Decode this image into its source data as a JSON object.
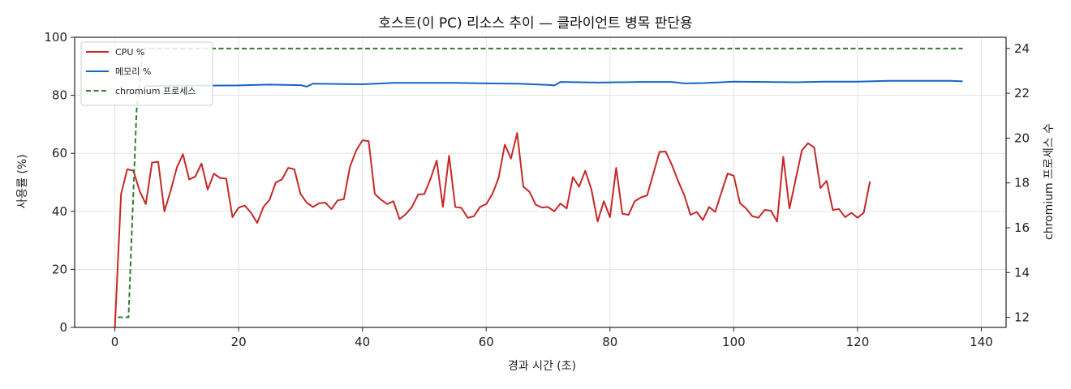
{
  "chart_data": {
    "type": "line",
    "title": "호스트(이 PC) 리소스 추이 — 클라이언트 병목 판단용",
    "xlabel": "경과 시간 (초)",
    "ylabel": "사용률 (%)",
    "y2label": "chromium 프로세스 수",
    "xlim": [
      -6.5,
      144
    ],
    "ylim": [
      0,
      100
    ],
    "y2lim": [
      11.55,
      24.5
    ],
    "xticks": [
      0,
      20,
      40,
      60,
      80,
      100,
      120,
      140
    ],
    "yticks": [
      0,
      20,
      40,
      60,
      80,
      100
    ],
    "y2ticks": [
      12,
      14,
      16,
      18,
      20,
      22,
      24
    ],
    "grid": true,
    "legend_position": "upper-left",
    "series": [
      {
        "name": "CPU %",
        "axis": "left",
        "color": "#c62828",
        "style": "solid",
        "points": [
          [
            0,
            0
          ],
          [
            1,
            46
          ],
          [
            2,
            54.5
          ],
          [
            3,
            54
          ],
          [
            4,
            47
          ],
          [
            5,
            42.5
          ],
          [
            6,
            56.8
          ],
          [
            7,
            57.1
          ],
          [
            8,
            40
          ],
          [
            9,
            47
          ],
          [
            10,
            55
          ],
          [
            11,
            59.7
          ],
          [
            12,
            51
          ],
          [
            13,
            52
          ],
          [
            14,
            56.5
          ],
          [
            15,
            47.5
          ],
          [
            16,
            53
          ],
          [
            17,
            51.5
          ],
          [
            18,
            51.3
          ],
          [
            19,
            38
          ],
          [
            20,
            41.3
          ],
          [
            21,
            42
          ],
          [
            22,
            39.5
          ],
          [
            23,
            36
          ],
          [
            24,
            41.5
          ],
          [
            25,
            44
          ],
          [
            26,
            50
          ],
          [
            27,
            51
          ],
          [
            28,
            55
          ],
          [
            29,
            54.5
          ],
          [
            30,
            46
          ],
          [
            31,
            43
          ],
          [
            32,
            41.5
          ],
          [
            33,
            42.8
          ],
          [
            34,
            43
          ],
          [
            35,
            40.8
          ],
          [
            36,
            43.8
          ],
          [
            37,
            44.2
          ],
          [
            38,
            55.5
          ],
          [
            39,
            61
          ],
          [
            40,
            64.5
          ],
          [
            41,
            64.2
          ],
          [
            42,
            46
          ],
          [
            43,
            44
          ],
          [
            44,
            42.5
          ],
          [
            45,
            43.5
          ],
          [
            46,
            37.3
          ],
          [
            47,
            39
          ],
          [
            48,
            41.5
          ],
          [
            49,
            45.8
          ],
          [
            50,
            46
          ],
          [
            51,
            51.2
          ],
          [
            52,
            57.5
          ],
          [
            53,
            41.5
          ],
          [
            54,
            59.2
          ],
          [
            55,
            41.5
          ],
          [
            56,
            41.2
          ],
          [
            57,
            37.8
          ],
          [
            58,
            38.3
          ],
          [
            59,
            41.5
          ],
          [
            60,
            42.5
          ],
          [
            61,
            46
          ],
          [
            62,
            51.5
          ],
          [
            63,
            63
          ],
          [
            64,
            58.2
          ],
          [
            65,
            67
          ],
          [
            66,
            48.5
          ],
          [
            67,
            46.7
          ],
          [
            68,
            42.3
          ],
          [
            69,
            41.3
          ],
          [
            70,
            41.5
          ],
          [
            71,
            40
          ],
          [
            72,
            42.7
          ],
          [
            73,
            41
          ],
          [
            74,
            51.8
          ],
          [
            75,
            48.5
          ],
          [
            76,
            54
          ],
          [
            77,
            47.5
          ],
          [
            78,
            36.5
          ],
          [
            79,
            43.5
          ],
          [
            80,
            38
          ],
          [
            81,
            55
          ],
          [
            82,
            39.2
          ],
          [
            83,
            38.8
          ],
          [
            84,
            43.5
          ],
          [
            85,
            44.8
          ],
          [
            86,
            45.5
          ],
          [
            87,
            53
          ],
          [
            88,
            60.5
          ],
          [
            89,
            60.6
          ],
          [
            90,
            56
          ],
          [
            91,
            50.5
          ],
          [
            92,
            45.6
          ],
          [
            93,
            38.8
          ],
          [
            94,
            39.8
          ],
          [
            95,
            37
          ],
          [
            96,
            41.5
          ],
          [
            97,
            39.8
          ],
          [
            98,
            46.5
          ],
          [
            99,
            53
          ],
          [
            100,
            52.3
          ],
          [
            101,
            42.8
          ],
          [
            102,
            41
          ],
          [
            103,
            38.3
          ],
          [
            104,
            37.8
          ],
          [
            105,
            40.5
          ],
          [
            106,
            40.2
          ],
          [
            107,
            36.5
          ],
          [
            108,
            58.8
          ],
          [
            109,
            41
          ],
          [
            110,
            51
          ],
          [
            111,
            61
          ],
          [
            112,
            63.5
          ],
          [
            113,
            62
          ],
          [
            114,
            48
          ],
          [
            115,
            50.5
          ],
          [
            116,
            40.5
          ],
          [
            117,
            40.8
          ],
          [
            118,
            38
          ],
          [
            119,
            39.5
          ],
          [
            120,
            37.8
          ],
          [
            121,
            39.5
          ],
          [
            122,
            50.3
          ]
        ]
      },
      {
        "name": "메모리 %",
        "axis": "left",
        "color": "#1565c0",
        "style": "solid",
        "points": [
          [
            5,
            83.2
          ],
          [
            20,
            83.4
          ],
          [
            25,
            83.7
          ],
          [
            30,
            83.5
          ],
          [
            31,
            83
          ],
          [
            32,
            84
          ],
          [
            40,
            83.8
          ],
          [
            45,
            84.3
          ],
          [
            50,
            84.3
          ],
          [
            55,
            84.3
          ],
          [
            60,
            84.1
          ],
          [
            65,
            84
          ],
          [
            70,
            83.6
          ],
          [
            71,
            83.4
          ],
          [
            72,
            84.6
          ],
          [
            78,
            84.4
          ],
          [
            82,
            84.5
          ],
          [
            85,
            84.6
          ],
          [
            90,
            84.6
          ],
          [
            92,
            84.1
          ],
          [
            95,
            84.2
          ],
          [
            100,
            84.7
          ],
          [
            110,
            84.5
          ],
          [
            115,
            84.7
          ],
          [
            120,
            84.7
          ],
          [
            125,
            85
          ],
          [
            130,
            85
          ],
          [
            135,
            85
          ],
          [
            137,
            84.8
          ]
        ]
      },
      {
        "name": "chromium 프로세스",
        "axis": "right",
        "color": "#2e7d32",
        "style": "dashed",
        "points": [
          [
            0.5,
            12
          ],
          [
            2.2,
            12
          ],
          [
            3.5,
            21.2
          ],
          [
            4.5,
            23.9
          ],
          [
            5,
            24
          ],
          [
            137,
            24
          ]
        ]
      }
    ]
  }
}
